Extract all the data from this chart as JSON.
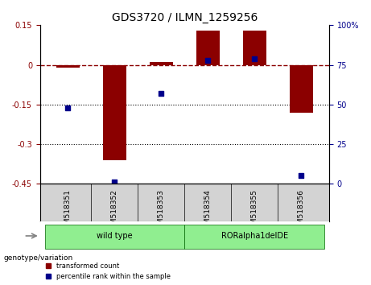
{
  "title": "GDS3720 / ILMN_1259256",
  "samples": [
    "GSM518351",
    "GSM518352",
    "GSM518353",
    "GSM518354",
    "GSM518355",
    "GSM518356"
  ],
  "groups": [
    {
      "label": "wild type",
      "color": "#90EE90",
      "samples": [
        0,
        1,
        2
      ]
    },
    {
      "label": "RORalpha1delDE",
      "color": "#90EE90",
      "samples": [
        3,
        4,
        5
      ]
    }
  ],
  "transformed_count": [
    -0.01,
    -0.36,
    0.01,
    0.13,
    0.13,
    -0.18
  ],
  "percentile_rank": [
    48,
    1,
    57,
    78,
    79,
    5
  ],
  "ylim_left": [
    -0.45,
    0.15
  ],
  "yticks_left": [
    0.15,
    0,
    -0.15,
    -0.3,
    -0.45
  ],
  "ytick_labels_left": [
    "0.15",
    "0",
    "-0.15",
    "-0.3",
    "-0.45"
  ],
  "ylim_right": [
    0,
    100
  ],
  "yticks_right": [
    100,
    75,
    50,
    25,
    0
  ],
  "ytick_labels_right": [
    "100%",
    "75",
    "50",
    "25",
    "0"
  ],
  "bar_color": "#8B0000",
  "dot_color": "#00008B",
  "hline_y": 0,
  "dotted_lines": [
    -0.15,
    -0.3
  ],
  "genotype_label": "genotype/variation",
  "legend_items": [
    {
      "label": "transformed count",
      "color": "#8B0000"
    },
    {
      "label": "percentile rank within the sample",
      "color": "#00008B"
    }
  ],
  "group_boundary": 3,
  "group1_label": "wild type",
  "group2_label": "RORalpha1delDE",
  "group_color": "#90EE90",
  "sample_bg_color": "#D3D3D3"
}
